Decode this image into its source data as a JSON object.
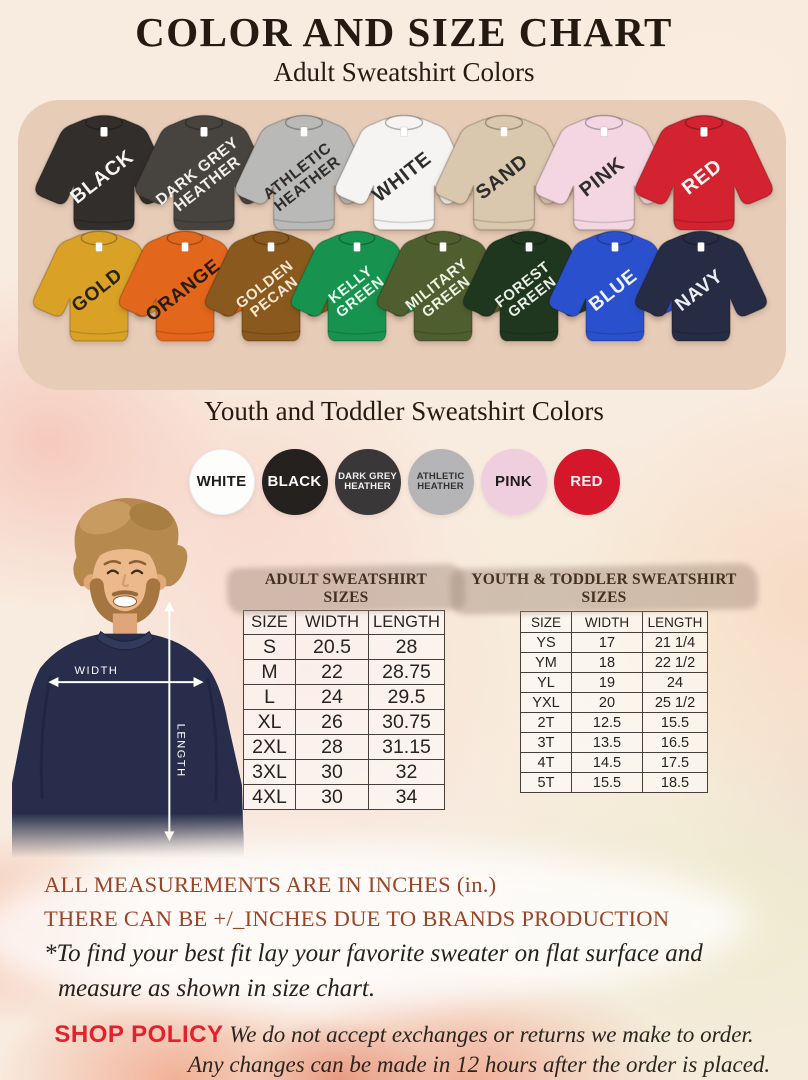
{
  "title": "COLOR AND SIZE CHART",
  "subtitle": "Adult Sweatshirt Colors",
  "adult_color_rows": [
    [
      {
        "label": "BLACK",
        "color": "#312e2c",
        "text": "#f5f5f4"
      },
      {
        "label": "DARK GREY\nHEATHER",
        "color": "#474440",
        "text": "#f0efed"
      },
      {
        "label": "ATHLETIC\nHEATHER",
        "color": "#b9b9b7",
        "text": "#2e2d2b"
      },
      {
        "label": "WHITE",
        "color": "#f5f4f2",
        "text": "#2e2d2b"
      },
      {
        "label": "SAND",
        "color": "#d9c8ad",
        "text": "#2e2d2b"
      },
      {
        "label": "PINK",
        "color": "#f3d6e1",
        "text": "#2e2d2b"
      },
      {
        "label": "RED",
        "color": "#d32330",
        "text": "#fdf4f2"
      }
    ],
    [
      {
        "label": "GOLD",
        "color": "#d9a226",
        "text": "#2b2415"
      },
      {
        "label": "ORANGE",
        "color": "#e2661b",
        "text": "#2b1c10"
      },
      {
        "label": "GOLDEN\nPECAN",
        "color": "#8a591d",
        "text": "#f6e8d2"
      },
      {
        "label": "KELLY\nGREEN",
        "color": "#17934f",
        "text": "#e8fbee"
      },
      {
        "label": "MILITARY\nGREEN",
        "color": "#4f5e2f",
        "text": "#eef2e4"
      },
      {
        "label": "FOREST\nGREEN",
        "color": "#20371f",
        "text": "#e9efe6"
      },
      {
        "label": "BLUE",
        "color": "#2b50cd",
        "text": "#eef2fd"
      },
      {
        "label": "NAVY",
        "color": "#272c45",
        "text": "#eceef5"
      }
    ]
  ],
  "youth_section": {
    "heading": "Youth and Toddler Sweatshirt Colors",
    "colors": [
      {
        "label": "WHITE",
        "color": "#fdfdfc",
        "text": "#1d1d1b"
      },
      {
        "label": "BLACK",
        "color": "#24211f",
        "text": "#fafafa"
      },
      {
        "label": "DARK GREY\nHEATHER",
        "color": "#3a3739",
        "text": "#f2f1f0"
      },
      {
        "label": "ATHLETIC\nHEATHER",
        "color": "#b5b5b7",
        "text": "#333230"
      },
      {
        "label": "PINK",
        "color": "#efcede",
        "text": "#1d1d1b"
      },
      {
        "label": "RED",
        "color": "#d5172b",
        "text": "#fdf1f1"
      }
    ]
  },
  "model": {
    "width_label": "WIDTH",
    "length_label": "LENGTH"
  },
  "adult_table": {
    "heading": "ADULT SWEATSHIRT SIZES",
    "columns": [
      "SIZE",
      "WIDTH",
      "LENGTH"
    ],
    "rows": [
      [
        "S",
        "20.5",
        "28"
      ],
      [
        "M",
        "22",
        "28.75"
      ],
      [
        "L",
        "24",
        "29.5"
      ],
      [
        "XL",
        "26",
        "30.75"
      ],
      [
        "2XL",
        "28",
        "31.15"
      ],
      [
        "3XL",
        "30",
        "32"
      ],
      [
        "4XL",
        "30",
        "34"
      ]
    ]
  },
  "youth_table": {
    "heading": "YOUTH & TODDLER SWEATSHIRT SIZES",
    "columns": [
      "SIZE",
      "WIDTH",
      "LENGTH"
    ],
    "rows": [
      [
        "YS",
        "17",
        "21 1/4"
      ],
      [
        "YM",
        "18",
        "22 1/2"
      ],
      [
        "YL",
        "19",
        "24"
      ],
      [
        "YXL",
        "20",
        "25 1/2"
      ],
      [
        "2T",
        "12.5",
        "15.5"
      ],
      [
        "3T",
        "13.5",
        "16.5"
      ],
      [
        "4T",
        "14.5",
        "17.5"
      ],
      [
        "5T",
        "15.5",
        "18.5"
      ]
    ]
  },
  "notes": {
    "line1": "ALL MEASUREMENTS ARE IN INCHES (in.)",
    "line2": "THERE CAN BE +/_INCHES DUE TO BRANDS PRODUCTION",
    "line3": "*To find your best fit lay your favorite sweater on flat surface and",
    "line4": "measure as shown in size chart."
  },
  "policy": {
    "label": "SHOP POLICY",
    "line1": "We do not accept exchanges or returns we make to order.",
    "line2": "Any changes can be made in 12 hours after the order is placed."
  },
  "colors": {
    "note_text": "#9a4426",
    "policy_red": "#e3202c",
    "panel_bg": "#e7ccb8",
    "table_border": "#46403a"
  }
}
